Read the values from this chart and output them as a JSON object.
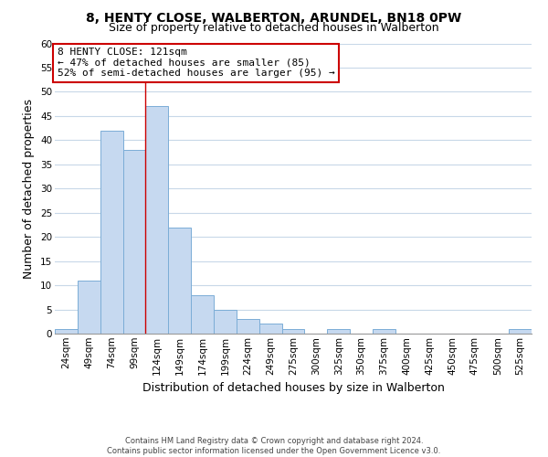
{
  "title": "8, HENTY CLOSE, WALBERTON, ARUNDEL, BN18 0PW",
  "subtitle": "Size of property relative to detached houses in Walberton",
  "xlabel": "Distribution of detached houses by size in Walberton",
  "ylabel": "Number of detached properties",
  "bar_labels": [
    "24sqm",
    "49sqm",
    "74sqm",
    "99sqm",
    "124sqm",
    "149sqm",
    "174sqm",
    "199sqm",
    "224sqm",
    "249sqm",
    "275sqm",
    "300sqm",
    "325sqm",
    "350sqm",
    "375sqm",
    "400sqm",
    "425sqm",
    "450sqm",
    "475sqm",
    "500sqm",
    "525sqm"
  ],
  "bar_values": [
    1,
    11,
    42,
    38,
    47,
    22,
    8,
    5,
    3,
    2,
    1,
    0,
    1,
    0,
    1,
    0,
    0,
    0,
    0,
    0,
    1
  ],
  "bar_color": "#c6d9f0",
  "bar_edge_color": "#7badd6",
  "grid_color": "#c8d8e8",
  "bg_color": "#ffffff",
  "ylim": [
    0,
    60
  ],
  "yticks": [
    0,
    5,
    10,
    15,
    20,
    25,
    30,
    35,
    40,
    45,
    50,
    55,
    60
  ],
  "red_line_x": 3.5,
  "annotation_title": "8 HENTY CLOSE: 121sqm",
  "annotation_line1": "← 47% of detached houses are smaller (85)",
  "annotation_line2": "52% of semi-detached houses are larger (95) →",
  "annotation_box_color": "#ffffff",
  "annotation_box_edge": "#cc0000",
  "footer_line1": "Contains HM Land Registry data © Crown copyright and database right 2024.",
  "footer_line2": "Contains public sector information licensed under the Open Government Licence v3.0.",
  "title_fontsize": 10,
  "subtitle_fontsize": 9,
  "axis_label_fontsize": 9,
  "tick_fontsize": 7.5,
  "annotation_fontsize": 8,
  "footer_fontsize": 6
}
